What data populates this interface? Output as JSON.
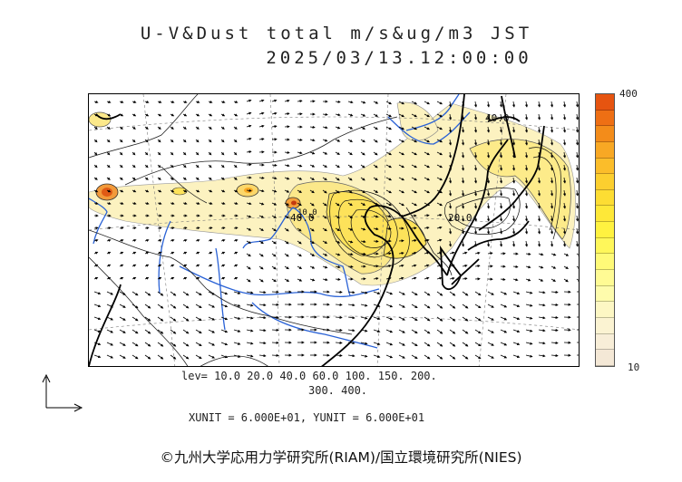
{
  "title": {
    "line1": "U-V&Dust total m/s&ug/m3 JST",
    "line2": "2025/03/13.12:00:00"
  },
  "colorbar": {
    "max_label": "400",
    "min_label": "10",
    "colors": [
      "#e65410",
      "#ee6f14",
      "#f38c1a",
      "#f8a824",
      "#fbbd2a",
      "#fccf2f",
      "#fddd33",
      "#fee838",
      "#fff240",
      "#fff75a",
      "#fffa78",
      "#fffb94",
      "#fefcac",
      "#fdf7c4",
      "#fbf3d2",
      "#f8eed8",
      "#f4e8d6"
    ]
  },
  "contour_levels": {
    "line1": "lev= 10.0 20.0 40.0 60.0 100. 150. 200.",
    "line2": "300. 400."
  },
  "map_labels": [
    "40.0",
    "20.0",
    "40.0",
    "10.0"
  ],
  "units": "XUNIT = 6.000E+01, YUNIT = 6.000E+01",
  "credit": "©九州大学応用力学研究所(RIAM)/国立環境研究所(NIES)",
  "icons": [
    "reference-vector-arrow-icon"
  ]
}
